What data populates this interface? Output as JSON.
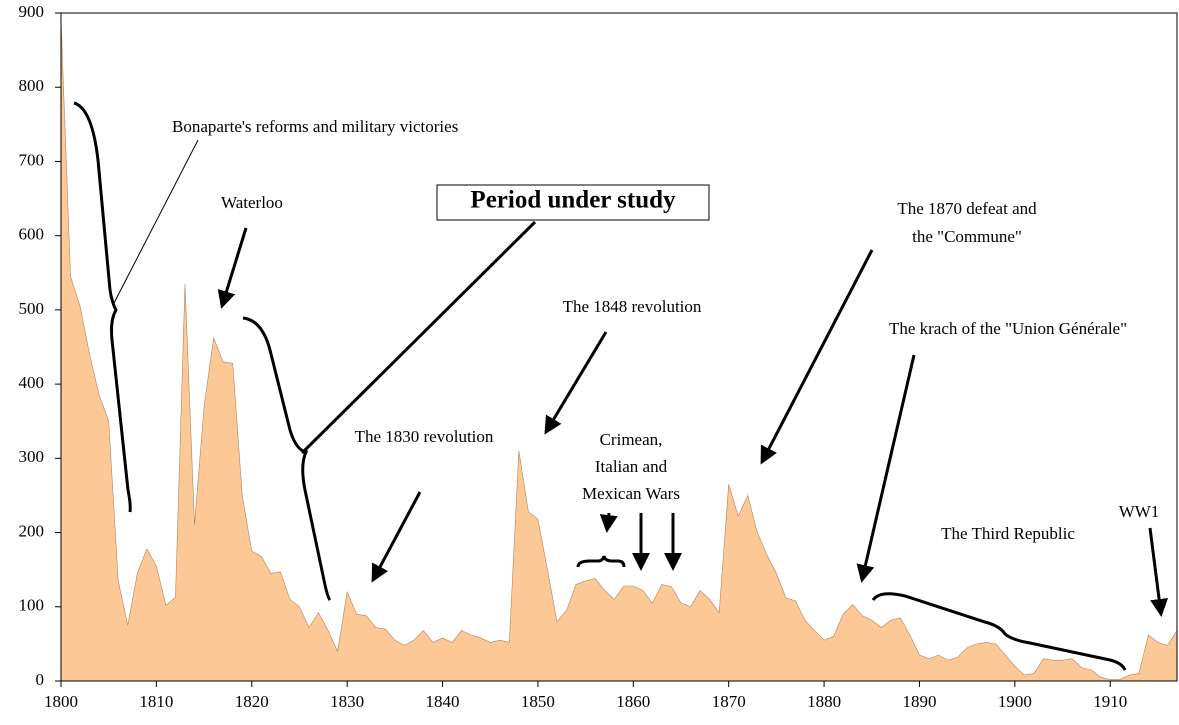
{
  "chart_data": {
    "type": "area",
    "x": [
      1800,
      1801,
      1802,
      1803,
      1804,
      1805,
      1806,
      1807,
      1808,
      1809,
      1810,
      1811,
      1812,
      1813,
      1814,
      1815,
      1816,
      1817,
      1818,
      1819,
      1820,
      1821,
      1822,
      1823,
      1824,
      1825,
      1826,
      1827,
      1828,
      1829,
      1830,
      1831,
      1832,
      1833,
      1834,
      1835,
      1836,
      1837,
      1838,
      1839,
      1840,
      1841,
      1842,
      1843,
      1844,
      1845,
      1846,
      1847,
      1848,
      1849,
      1850,
      1851,
      1852,
      1853,
      1854,
      1855,
      1856,
      1857,
      1858,
      1859,
      1860,
      1861,
      1862,
      1863,
      1864,
      1865,
      1866,
      1867,
      1868,
      1869,
      1870,
      1871,
      1872,
      1873,
      1874,
      1875,
      1876,
      1877,
      1878,
      1879,
      1880,
      1881,
      1882,
      1883,
      1884,
      1885,
      1886,
      1887,
      1888,
      1889,
      1890,
      1891,
      1892,
      1893,
      1894,
      1895,
      1896,
      1897,
      1898,
      1899,
      1900,
      1901,
      1902,
      1903,
      1904,
      1905,
      1906,
      1907,
      1908,
      1909,
      1910,
      1911,
      1912,
      1913,
      1914,
      1915,
      1916,
      1917
    ],
    "values": [
      890,
      545,
      505,
      440,
      385,
      350,
      135,
      75,
      145,
      178,
      155,
      102,
      113,
      535,
      210,
      370,
      462,
      430,
      428,
      250,
      175,
      168,
      145,
      147,
      110,
      100,
      72,
      92,
      68,
      40,
      120,
      90,
      88,
      72,
      70,
      55,
      48,
      55,
      68,
      52,
      58,
      52,
      68,
      62,
      58,
      52,
      55,
      52,
      310,
      228,
      218,
      150,
      80,
      95,
      130,
      135,
      138,
      122,
      110,
      128,
      128,
      122,
      105,
      130,
      127,
      105,
      100,
      122,
      110,
      92,
      265,
      222,
      250,
      200,
      170,
      145,
      112,
      108,
      82,
      68,
      55,
      60,
      90,
      103,
      88,
      82,
      72,
      82,
      85,
      62,
      35,
      30,
      35,
      28,
      32,
      45,
      50,
      52,
      50,
      35,
      20,
      8,
      10,
      30,
      28,
      28,
      30,
      18,
      15,
      5,
      2,
      2,
      8,
      10,
      62,
      52,
      48,
      68
    ],
    "color": "#fcc895",
    "xlim": [
      1800,
      1917
    ],
    "xticks": [
      1800,
      1810,
      1820,
      1830,
      1840,
      1850,
      1860,
      1870,
      1880,
      1890,
      1900,
      1910
    ],
    "ylim": [
      0,
      900
    ],
    "yticks": [
      0,
      100,
      200,
      300,
      400,
      500,
      600,
      700,
      800,
      900
    ],
    "annotations": [
      "Bonaparte's reforms and military victories",
      "Waterloo",
      "Period under study",
      "The 1848 revolution",
      [
        "The 1870 defeat and",
        "the \"Commune\""
      ],
      "The krach of the \"Union Générale\"",
      "The 1830 revolution",
      [
        "Crimean,",
        "Italian and",
        "Mexican Wars"
      ],
      "The Third Republic",
      "WW1"
    ]
  }
}
